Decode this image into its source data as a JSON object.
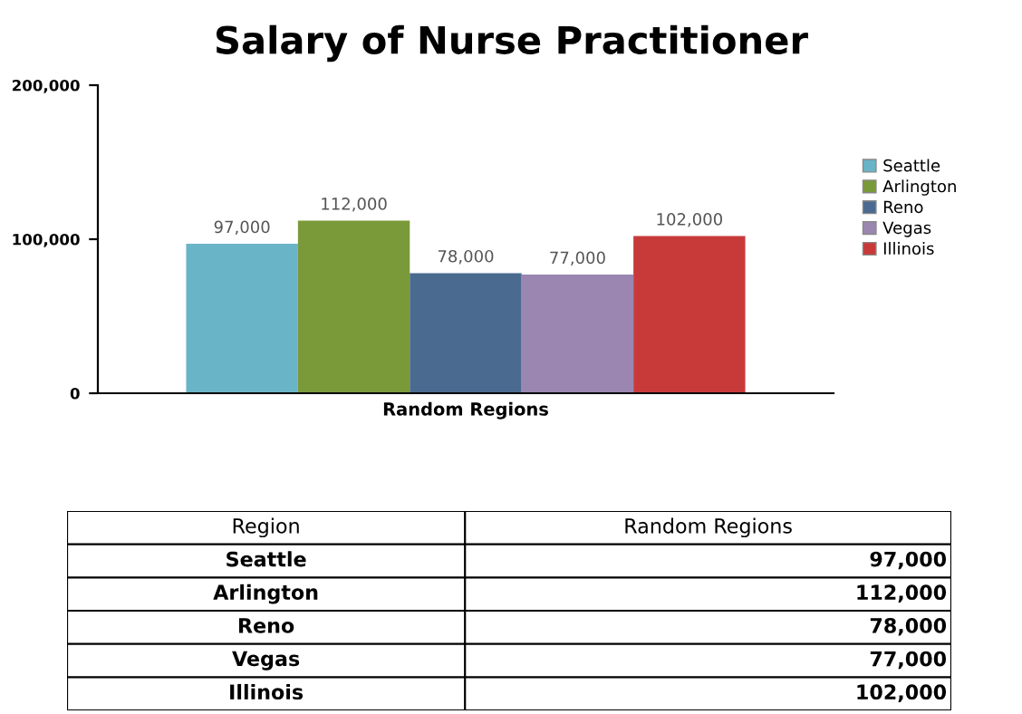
{
  "chart_data": {
    "type": "bar",
    "title": "Salary of Nurse Practitioner",
    "categories": [
      "Random Regions"
    ],
    "series": [
      {
        "name": "Seattle",
        "color": "#6ab4c8",
        "values": [
          97000
        ],
        "value_labels": [
          "97,000"
        ]
      },
      {
        "name": "Arlington",
        "color": "#7a9a3a",
        "values": [
          112000
        ],
        "value_labels": [
          "112,000"
        ]
      },
      {
        "name": "Reno",
        "color": "#4a6a90",
        "values": [
          78000
        ],
        "value_labels": [
          "78,000"
        ]
      },
      {
        "name": "Vegas",
        "color": "#9a86b0",
        "values": [
          77000
        ],
        "value_labels": [
          "77,000"
        ]
      },
      {
        "name": "Illinois",
        "color": "#c83a3a",
        "values": [
          102000
        ],
        "value_labels": [
          "102,000"
        ]
      }
    ],
    "ylim": [
      0,
      200000
    ],
    "yticks": [
      {
        "value": 0,
        "label": "0"
      },
      {
        "value": 100000,
        "label": "100,000"
      },
      {
        "value": 200000,
        "label": "200,000"
      }
    ],
    "legend": "right",
    "grid": false,
    "annotations": [
      "Region"
    ]
  }
}
